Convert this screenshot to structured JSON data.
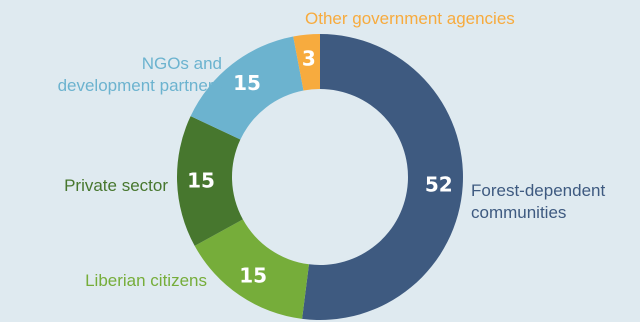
{
  "chart_data": {
    "type": "pie",
    "style": "donut",
    "categories": [
      "Forest-dependent communities",
      "Liberian citizens",
      "Private sector",
      "NGOs and development partners",
      "Other government agencies"
    ],
    "values": [
      52,
      15,
      15,
      15,
      3
    ],
    "colors": [
      "#3e5a80",
      "#76ad3a",
      "#47772e",
      "#6cb3cf",
      "#f7ab3e"
    ],
    "label_colors": [
      "#3e5a80",
      "#76ad3a",
      "#47772e",
      "#6cb3cf",
      "#f7ab3e"
    ],
    "label_lines": [
      [
        "Forest-dependent",
        "communities"
      ],
      [
        "Liberian citizens"
      ],
      [
        "Private sector"
      ],
      [
        "NGOs and",
        "development partners"
      ],
      [
        "Other government agencies"
      ]
    ],
    "value_labels": [
      "52",
      "15",
      "15",
      "15",
      "3"
    ],
    "legend": "none",
    "start": "top, clockwise"
  }
}
